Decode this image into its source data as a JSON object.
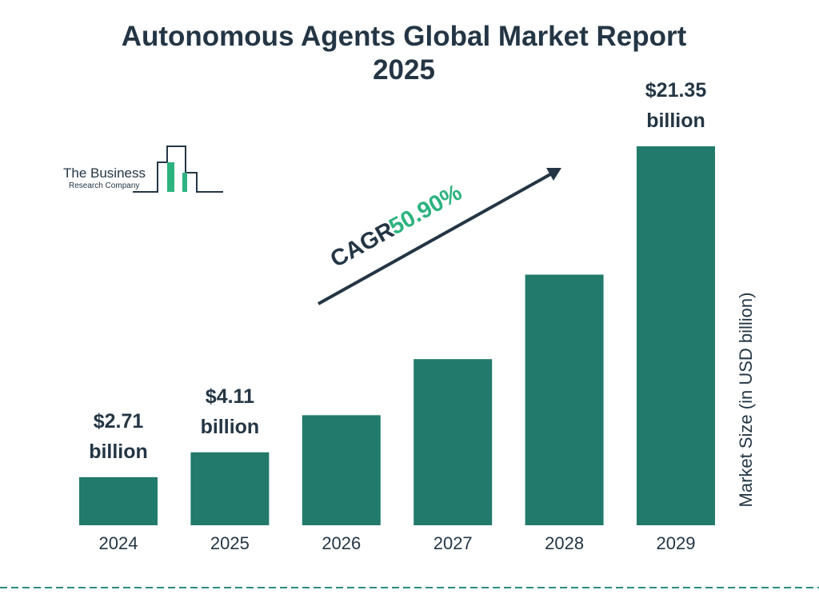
{
  "chart_data": {
    "type": "bar",
    "title": "Autonomous Agents Global Market Report 2025",
    "categories": [
      "2024",
      "2025",
      "2026",
      "2027",
      "2028",
      "2029"
    ],
    "values": [
      2.71,
      4.11,
      6.2,
      9.36,
      14.12,
      21.35
    ],
    "value_labels": [
      "$2.71 billion",
      "$4.11 billion",
      null,
      null,
      null,
      "$21.35 billion"
    ],
    "color": "#217a6b",
    "y_label": "Market Size (in USD billion)",
    "annotation": {
      "label": "CAGR",
      "rate": "50.90%"
    }
  },
  "logo": {
    "line1": "The Business",
    "line2": "Research Company"
  }
}
